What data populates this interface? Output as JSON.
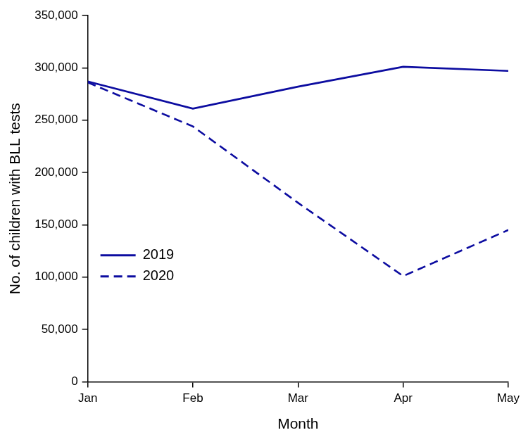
{
  "chart_data": {
    "type": "line",
    "x_label": "Month",
    "y_label": "No. of children with BLL tests",
    "categories": [
      "Jan",
      "Feb",
      "Mar",
      "Apr",
      "May"
    ],
    "series": [
      {
        "name": "2019",
        "color": "#0c0ca0",
        "line_style": "solid",
        "values": [
          287000,
          261000,
          282000,
          301000,
          297000
        ]
      },
      {
        "name": "2020",
        "color": "#0c0ca0",
        "line_style": "dashed",
        "values": [
          286000,
          244000,
          171000,
          101000,
          145000
        ]
      }
    ],
    "ylim": [
      0,
      350000
    ],
    "yticks": [
      0,
      {
        "value": 50000,
        "label": "50,000"
      },
      {
        "value": 100000,
        "label": "100,000"
      },
      {
        "value": 150000,
        "label": "150,000"
      },
      {
        "value": 200000,
        "label": "200,000"
      },
      {
        "value": 250000,
        "label": "250,000"
      },
      {
        "value": 300000,
        "label": "300,000"
      },
      {
        "value": 350000,
        "label": "350,000"
      }
    ],
    "grid": false,
    "legend": "left"
  }
}
